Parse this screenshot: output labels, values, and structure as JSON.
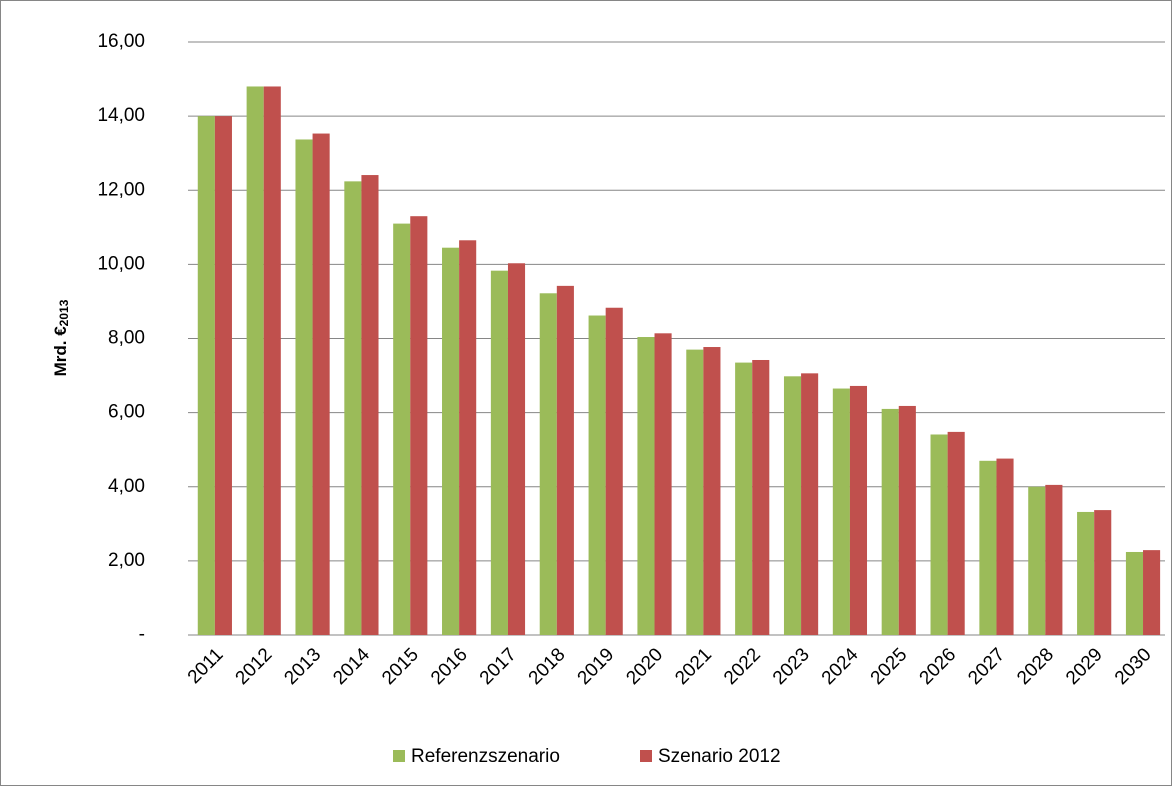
{
  "chart_data": {
    "type": "bar",
    "y_label": {
      "text": "Mrd. €",
      "subscript": "2013"
    },
    "categories": [
      "2011",
      "2012",
      "2013",
      "2014",
      "2015",
      "2016",
      "2017",
      "2018",
      "2019",
      "2020",
      "2021",
      "2022",
      "2023",
      "2024",
      "2025",
      "2026",
      "2027",
      "2028",
      "2029",
      "2030"
    ],
    "series": [
      {
        "name": "Referenzszenario",
        "color": "#9bbb59",
        "values": [
          14.0,
          14.8,
          13.37,
          12.24,
          11.1,
          10.45,
          9.83,
          9.22,
          8.62,
          8.04,
          7.7,
          7.35,
          6.98,
          6.65,
          6.1,
          5.41,
          4.7,
          4.0,
          3.32,
          2.24
        ]
      },
      {
        "name": "Szenario 2012",
        "color": "#c0504d",
        "values": [
          14.0,
          14.8,
          13.53,
          12.41,
          11.3,
          10.65,
          10.03,
          9.42,
          8.83,
          8.14,
          7.77,
          7.42,
          7.06,
          6.72,
          6.18,
          5.48,
          4.76,
          4.05,
          3.37,
          2.29
        ]
      }
    ],
    "ylim": [
      0,
      16
    ],
    "yticks": [
      {
        "value": 0,
        "label": "-"
      },
      {
        "value": 2,
        "label": "2,00"
      },
      {
        "value": 4,
        "label": "4,00"
      },
      {
        "value": 6,
        "label": "6,00"
      },
      {
        "value": 8,
        "label": "8,00"
      },
      {
        "value": 10,
        "label": "10,00"
      },
      {
        "value": 12,
        "label": "12,00"
      },
      {
        "value": 14,
        "label": "14,00"
      },
      {
        "value": 16,
        "label": "16,00"
      }
    ],
    "grid": true,
    "legend": "bottom"
  }
}
